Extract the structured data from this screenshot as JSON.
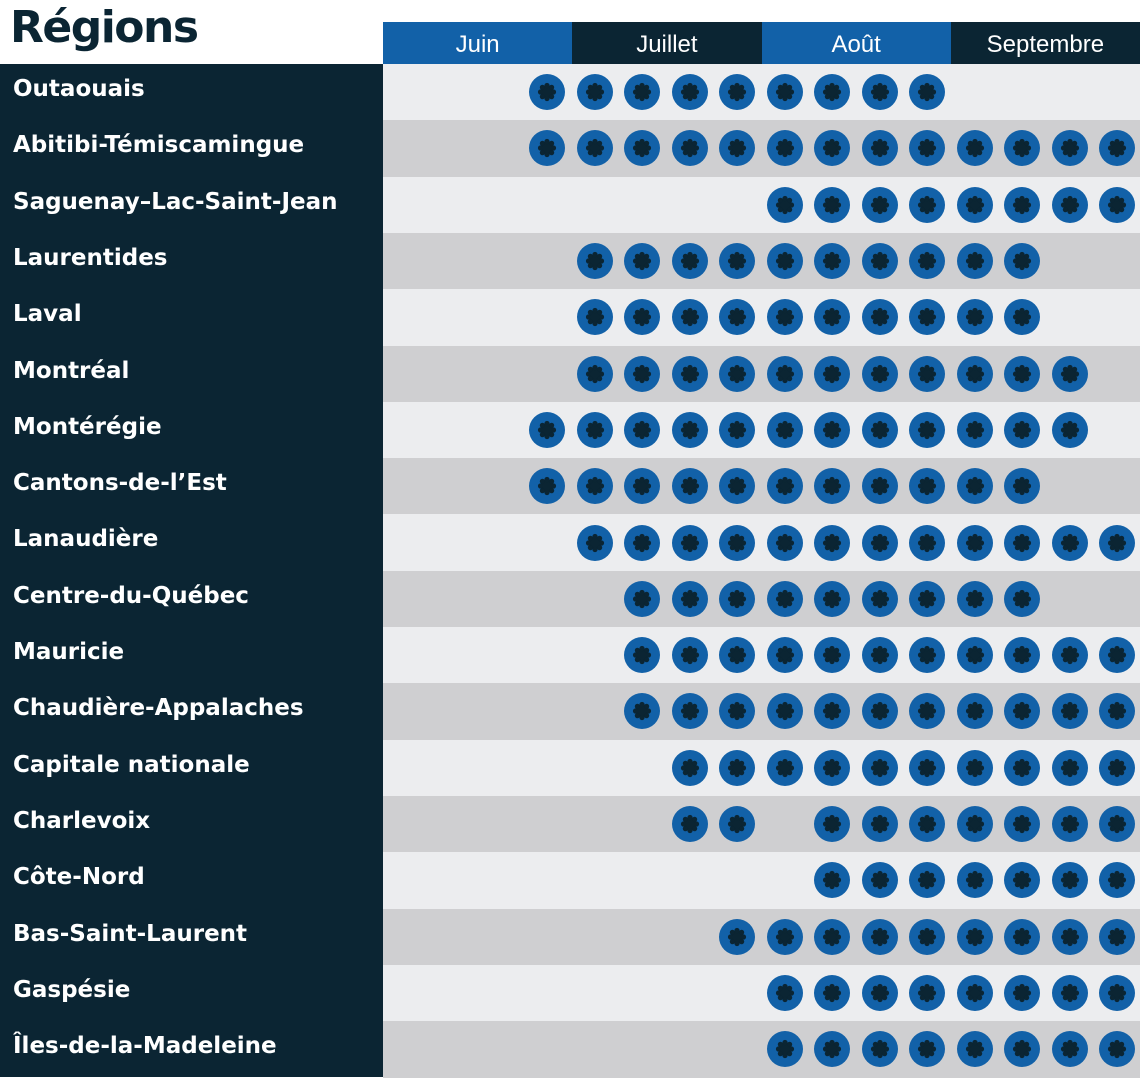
{
  "chart_data": {
    "type": "table",
    "title": "Régions",
    "periods": [
      "Juin",
      "Juillet",
      "Août",
      "Septembre"
    ],
    "column_ticks": 13,
    "colors": {
      "dark": "#0b2533",
      "blue": "#1261a8",
      "row_light": "#ecedef",
      "row_dark": "#cfcfd1"
    },
    "regions": [
      {
        "name": "Outaouais",
        "active": [
          3,
          4,
          5,
          6,
          7,
          8,
          9,
          10,
          11
        ]
      },
      {
        "name": "Abitibi-Témiscamingue",
        "active": [
          3,
          4,
          5,
          6,
          7,
          8,
          9,
          10,
          11,
          12,
          13,
          14,
          15
        ]
      },
      {
        "name": "Saguenay–Lac-Saint-Jean",
        "active": [
          8,
          9,
          10,
          11,
          12,
          13,
          14,
          15
        ]
      },
      {
        "name": "Laurentides",
        "active": [
          4,
          5,
          6,
          7,
          8,
          9,
          10,
          11,
          12,
          13
        ]
      },
      {
        "name": "Laval",
        "active": [
          4,
          5,
          6,
          7,
          8,
          9,
          10,
          11,
          12,
          13
        ]
      },
      {
        "name": "Montréal",
        "active": [
          4,
          5,
          6,
          7,
          8,
          9,
          10,
          11,
          12,
          13,
          14
        ]
      },
      {
        "name": "Montérégie",
        "active": [
          3,
          4,
          5,
          6,
          7,
          8,
          9,
          10,
          11,
          12,
          13,
          14
        ]
      },
      {
        "name": "Cantons-de-l’Est",
        "active": [
          3,
          4,
          5,
          6,
          7,
          8,
          9,
          10,
          11,
          12,
          13
        ]
      },
      {
        "name": "Lanaudière",
        "active": [
          4,
          5,
          6,
          7,
          8,
          9,
          10,
          11,
          12,
          13,
          14,
          15
        ]
      },
      {
        "name": "Centre-du-Québec",
        "active": [
          5,
          6,
          7,
          8,
          9,
          10,
          11,
          12,
          13
        ]
      },
      {
        "name": "Mauricie",
        "active": [
          5,
          6,
          7,
          8,
          9,
          10,
          11,
          12,
          13,
          14,
          15
        ]
      },
      {
        "name": "Chaudière-Appalaches",
        "active": [
          5,
          6,
          7,
          8,
          9,
          10,
          11,
          12,
          13,
          14,
          15
        ]
      },
      {
        "name": "Capitale nationale",
        "active": [
          6,
          7,
          8,
          9,
          10,
          11,
          12,
          13,
          14,
          15
        ]
      },
      {
        "name": "Charlevoix",
        "active": [
          6,
          7,
          9,
          10,
          11,
          12,
          13,
          14,
          15
        ]
      },
      {
        "name": "Côte-Nord",
        "active": [
          9,
          10,
          11,
          12,
          13,
          14,
          15
        ]
      },
      {
        "name": "Bas-Saint-Laurent",
        "active": [
          7,
          8,
          9,
          10,
          11,
          12,
          13,
          14,
          15
        ]
      },
      {
        "name": "Gaspésie",
        "active": [
          8,
          9,
          10,
          11,
          12,
          13,
          14,
          15
        ]
      },
      {
        "name": "Îles-de-la-Madeleine",
        "active": [
          8,
          9,
          10,
          11,
          12,
          13,
          14,
          15
        ]
      }
    ]
  }
}
